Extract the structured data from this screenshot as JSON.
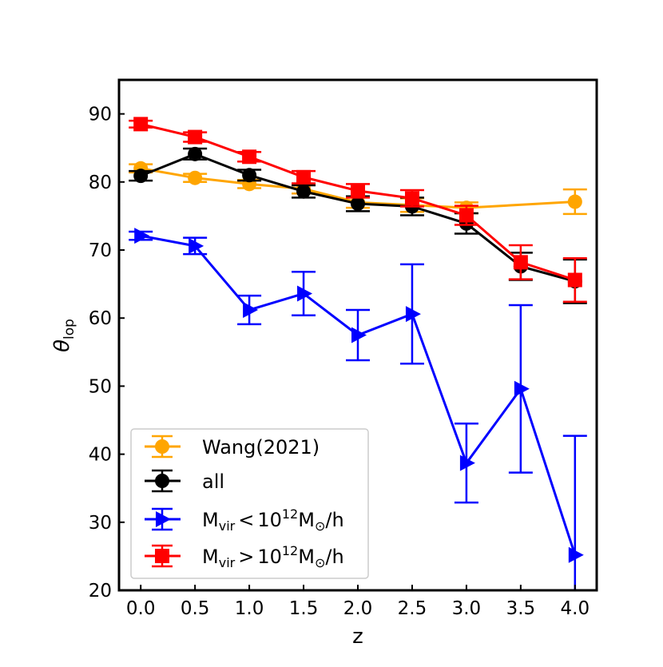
{
  "chart_data": {
    "type": "line",
    "title": "",
    "xlabel": "z",
    "ylabel": "θ",
    "ylabel_sub": "lop",
    "xlim": [
      -0.2,
      4.2
    ],
    "ylim": [
      20,
      95
    ],
    "xticks": [
      0.0,
      0.5,
      1.0,
      1.5,
      2.0,
      2.5,
      3.0,
      3.5,
      4.0
    ],
    "xtick_labels": [
      "0.0",
      "0.5",
      "1.0",
      "1.5",
      "2.0",
      "2.5",
      "3.0",
      "3.5",
      "4.0"
    ],
    "yticks": [
      20,
      30,
      40,
      50,
      60,
      70,
      80,
      90
    ],
    "ytick_labels": [
      "20",
      "30",
      "40",
      "50",
      "60",
      "70",
      "80",
      "90"
    ],
    "grid": false,
    "legend_position": "lower-left",
    "series": [
      {
        "name": "Wang(2021)",
        "color": "#FFA500",
        "marker": "circle",
        "x": [
          0.0,
          0.5,
          1.0,
          1.5,
          2.0,
          2.5,
          3.0,
          4.0
        ],
        "values": [
          82.0,
          80.6,
          79.7,
          79.0,
          77.0,
          76.6,
          76.2,
          77.1
        ],
        "errors": [
          0.6,
          0.6,
          0.6,
          0.7,
          0.8,
          1.0,
          0.8,
          1.8
        ]
      },
      {
        "name": "all",
        "color": "#000000",
        "marker": "circle",
        "x": [
          0.0,
          0.5,
          1.0,
          1.5,
          2.0,
          2.5,
          3.0,
          3.5,
          4.0
        ],
        "values": [
          80.9,
          84.1,
          81.0,
          78.6,
          76.8,
          76.4,
          73.9,
          67.6,
          65.4
        ],
        "errors": [
          0.7,
          0.8,
          0.8,
          0.9,
          1.1,
          1.3,
          1.5,
          2.0,
          3.2
        ]
      },
      {
        "name": "M",
        "legend_parts": {
          "m": "M",
          "sub": "vir",
          "op": "<",
          "base": "10",
          "sup": "12",
          "m2": "M",
          "sun": "⊙",
          "tail": "/h"
        },
        "color": "#0000FF",
        "marker": "triangle-right",
        "x": [
          0.0,
          0.5,
          1.0,
          1.5,
          2.0,
          2.5,
          3.0,
          3.5,
          4.0
        ],
        "values": [
          72.1,
          70.6,
          61.2,
          63.6,
          57.5,
          60.6,
          38.7,
          49.6,
          25.2
        ],
        "errors": [
          0.6,
          1.2,
          2.1,
          3.2,
          3.7,
          7.3,
          5.8,
          12.3,
          17.5
        ]
      },
      {
        "name": "M",
        "legend_parts": {
          "m": "M",
          "sub": "vir",
          "op": ">",
          "base": "10",
          "sup": "12",
          "m2": "M",
          "sun": "⊙",
          "tail": "/h"
        },
        "color": "#FF0000",
        "marker": "square",
        "x": [
          0.0,
          0.5,
          1.0,
          1.5,
          2.0,
          2.5,
          3.0,
          3.5,
          4.0
        ],
        "values": [
          88.5,
          86.6,
          83.7,
          80.7,
          78.7,
          77.6,
          75.1,
          68.2,
          65.6
        ],
        "errors": [
          0.5,
          0.7,
          0.7,
          0.9,
          1.0,
          1.2,
          1.4,
          2.5,
          3.2
        ]
      }
    ]
  }
}
